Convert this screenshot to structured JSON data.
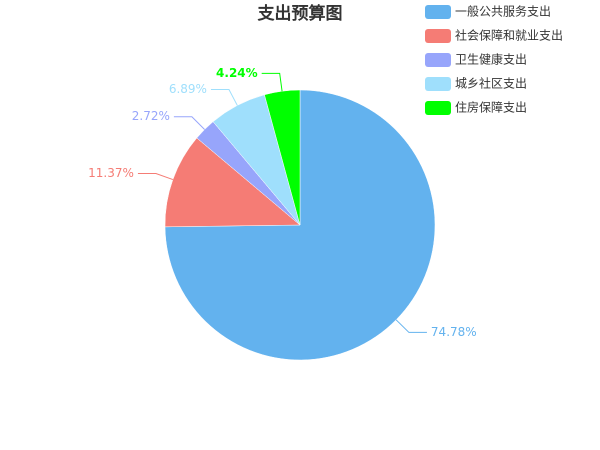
{
  "chart_data": {
    "type": "pie",
    "title": "支出预算图",
    "categories": [
      "一般公共服务支出",
      "社会保障和就业支出",
      "卫生健康支出",
      "城乡社区支出",
      "住房保障支出"
    ],
    "values": [
      74.78,
      11.37,
      2.72,
      6.89,
      4.24
    ],
    "value_labels": [
      "74.78%",
      "11.37%",
      "2.72%",
      "6.89%",
      "4.24%"
    ],
    "colors": [
      "#63b2ee",
      "#f57c75",
      "#97a5fb",
      "#9fdffc",
      "#00ff00"
    ],
    "legend": "top-right"
  }
}
